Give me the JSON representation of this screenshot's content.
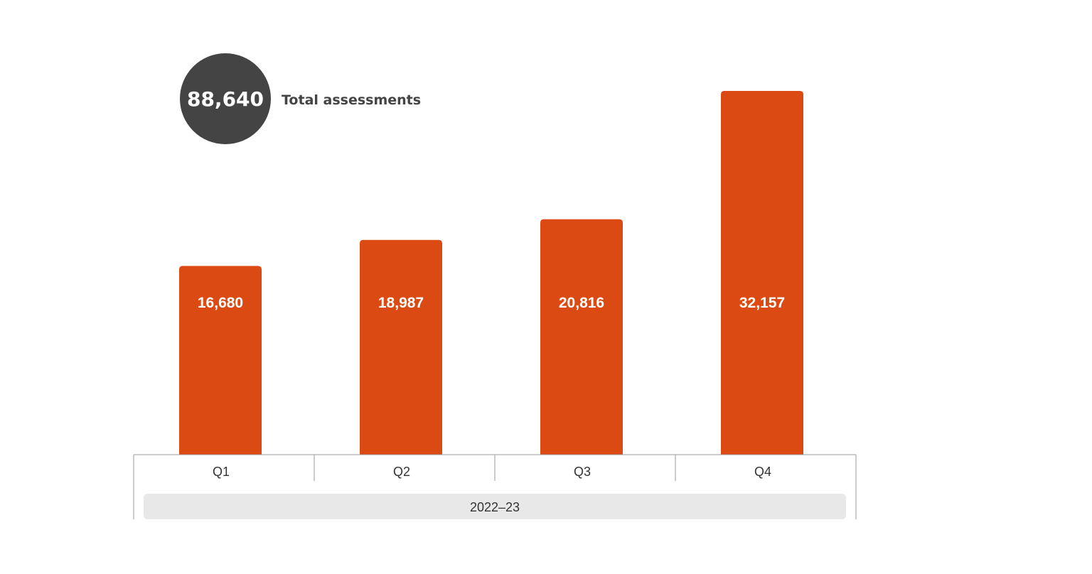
{
  "summary": {
    "total_value": "88,640",
    "total_label": "Total assessments"
  },
  "colors": {
    "bar": "#dc4a13",
    "badge": "#444444",
    "axis": "#9a9a9a",
    "group_band": "#e8e8e8"
  },
  "chart_data": {
    "type": "bar",
    "categories": [
      "Q1",
      "Q2",
      "Q3",
      "Q4"
    ],
    "values": [
      16680,
      18987,
      20816,
      32157
    ],
    "value_labels": [
      "16,680",
      "18,987",
      "20,816",
      "32,157"
    ],
    "group_label": "2022–23",
    "ylim": [
      0,
      32157
    ],
    "grid": false,
    "legend": "none"
  }
}
